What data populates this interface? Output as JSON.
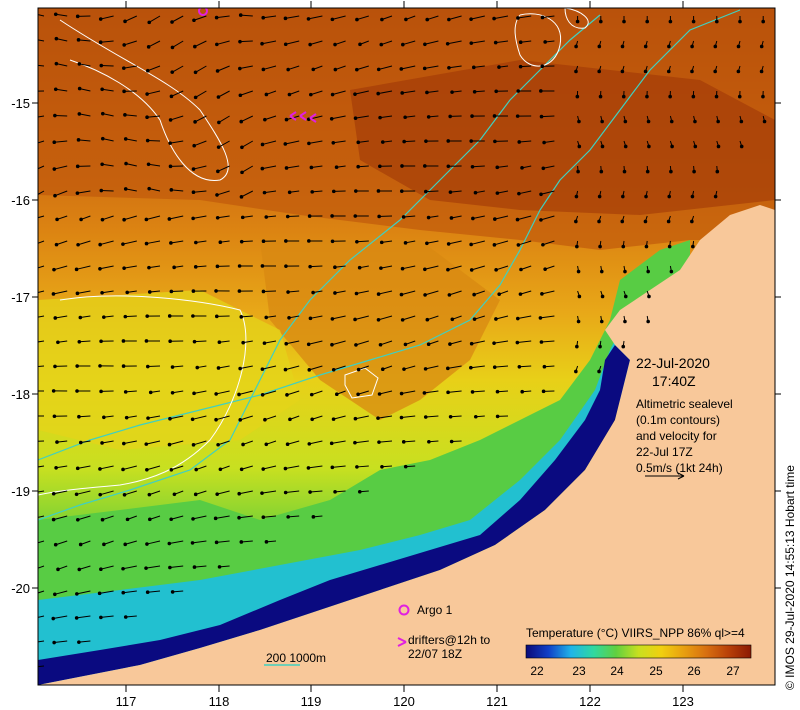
{
  "map": {
    "x_ticks": [
      "117",
      "118",
      "119",
      "120",
      "121",
      "122",
      "123"
    ],
    "y_ticks": [
      "-15",
      "-16",
      "-17",
      "-18",
      "-19",
      "-20"
    ],
    "arrow_rows": 27,
    "arrow_cols": 32
  },
  "legend": {
    "date": "22-Jul-2020",
    "time": "17:40Z",
    "alt_lines": [
      "Altimetric sealevel",
      "(0.1m contours)",
      "and velocity for",
      "22-Jul 17Z",
      "0.5m/s (1kt 24h)"
    ],
    "argo": "Argo 1",
    "drifters_line1": "drifters@12h to",
    "drifters_line2": "22/07 18Z",
    "depth": "200  1000m"
  },
  "colorbar": {
    "title": "Temperature (°C) VIIRS_NPP 86% ql>=4",
    "ticks": [
      "22",
      "23",
      "24",
      "25",
      "26",
      "27"
    ],
    "colors": [
      "#0a0a78",
      "#1040c8",
      "#20b4e8",
      "#30d8a0",
      "#60d040",
      "#c8e020",
      "#f0d010",
      "#e8a010",
      "#d87010",
      "#b84008",
      "#8c1a04"
    ]
  },
  "credit": "© IMOS 29-Jul-2020 14:55:13 Hobart time",
  "colors": {
    "land": "#f8c89a",
    "warm_dark": "#b04a0a",
    "warm": "#d87010",
    "orange": "#e89a18",
    "yellow": "#e8d818",
    "green": "#60d040",
    "cyan": "#20c8d8",
    "deep_blue": "#0a0a80",
    "isobath": "#40d0c0",
    "magenta": "#e020e0"
  }
}
